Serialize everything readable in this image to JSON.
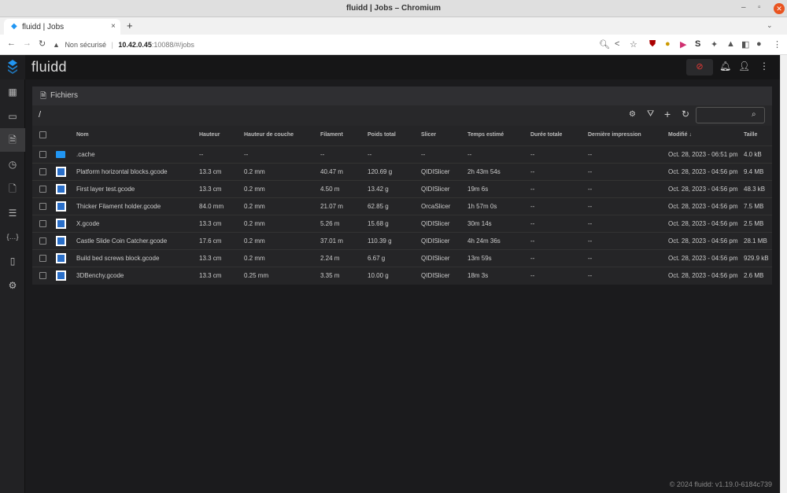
{
  "window": {
    "title": "fluidd | Jobs – Chromium"
  },
  "tab": {
    "title": "fluidd | Jobs"
  },
  "address": {
    "security": "Non sécurisé",
    "host": "10.42.0.45",
    "path": ":10088/#/jobs"
  },
  "app": {
    "brand": "fluidd",
    "footer": "© 2024 fluidd: v1.19.0-6184c739"
  },
  "sidebar": {
    "items": [
      {
        "icon": "dashboard-icon"
      },
      {
        "icon": "console-icon"
      },
      {
        "icon": "file-icon",
        "active": true
      },
      {
        "icon": "history-icon"
      },
      {
        "icon": "file-document-icon"
      },
      {
        "icon": "tune-icon"
      },
      {
        "icon": "code-braces-icon"
      },
      {
        "icon": "server-icon"
      },
      {
        "icon": "gear-icon"
      }
    ]
  },
  "card": {
    "title": "Fichiers",
    "path": "/",
    "search_placeholder": ""
  },
  "colors": {
    "accent": "#2196f3",
    "emergency": "#e53935"
  },
  "table": {
    "headers": [
      "Nom",
      "Hauteur",
      "Hauteur de couche",
      "Filament",
      "Poids total",
      "Slicer",
      "Temps estimé",
      "Durée totale",
      "Dernière impression",
      "Modifié ↓",
      "Taille"
    ],
    "rows": [
      {
        "type": "folder",
        "cells": [
          ".cache",
          "--",
          "--",
          "--",
          "--",
          "--",
          "--",
          "--",
          "--",
          "Oct. 28, 2023 - 06:51 pm",
          "4.0 kB"
        ]
      },
      {
        "type": "gcode",
        "cells": [
          "Platform horizontal blocks.gcode",
          "13.3 cm",
          "0.2 mm",
          "40.47 m",
          "120.69 g",
          "QIDISlicer",
          "2h 43m 54s",
          "--",
          "--",
          "Oct. 28, 2023 - 04:56 pm",
          "9.4 MB"
        ]
      },
      {
        "type": "gcode",
        "cells": [
          "First layer test.gcode",
          "13.3 cm",
          "0.2 mm",
          "4.50 m",
          "13.42 g",
          "QIDISlicer",
          "19m 6s",
          "--",
          "--",
          "Oct. 28, 2023 - 04:56 pm",
          "48.3 kB"
        ]
      },
      {
        "type": "gcode",
        "cells": [
          "Thicker Filament holder.gcode",
          "84.0 mm",
          "0.2 mm",
          "21.07 m",
          "62.85 g",
          "OrcaSlicer",
          "1h 57m 0s",
          "--",
          "--",
          "Oct. 28, 2023 - 04:56 pm",
          "7.5 MB"
        ]
      },
      {
        "type": "gcode",
        "cells": [
          "X.gcode",
          "13.3 cm",
          "0.2 mm",
          "5.26 m",
          "15.68 g",
          "QIDISlicer",
          "30m 14s",
          "--",
          "--",
          "Oct. 28, 2023 - 04:56 pm",
          "2.5 MB"
        ]
      },
      {
        "type": "gcode",
        "cells": [
          "Castle Slide Coin Catcher.gcode",
          "17.6 cm",
          "0.2 mm",
          "37.01 m",
          "110.39 g",
          "QIDISlicer",
          "4h 24m 36s",
          "--",
          "--",
          "Oct. 28, 2023 - 04:56 pm",
          "28.1 MB"
        ]
      },
      {
        "type": "gcode",
        "cells": [
          "Build bed screws block.gcode",
          "13.3 cm",
          "0.2 mm",
          "2.24 m",
          "6.67 g",
          "QIDISlicer",
          "13m 59s",
          "--",
          "--",
          "Oct. 28, 2023 - 04:56 pm",
          "929.9 kB"
        ]
      },
      {
        "type": "gcode",
        "cells": [
          "3DBenchy.gcode",
          "13.3 cm",
          "0.25 mm",
          "3.35 m",
          "10.00 g",
          "QIDISlicer",
          "18m 3s",
          "--",
          "--",
          "Oct. 28, 2023 - 04:56 pm",
          "2.6 MB"
        ]
      }
    ]
  }
}
